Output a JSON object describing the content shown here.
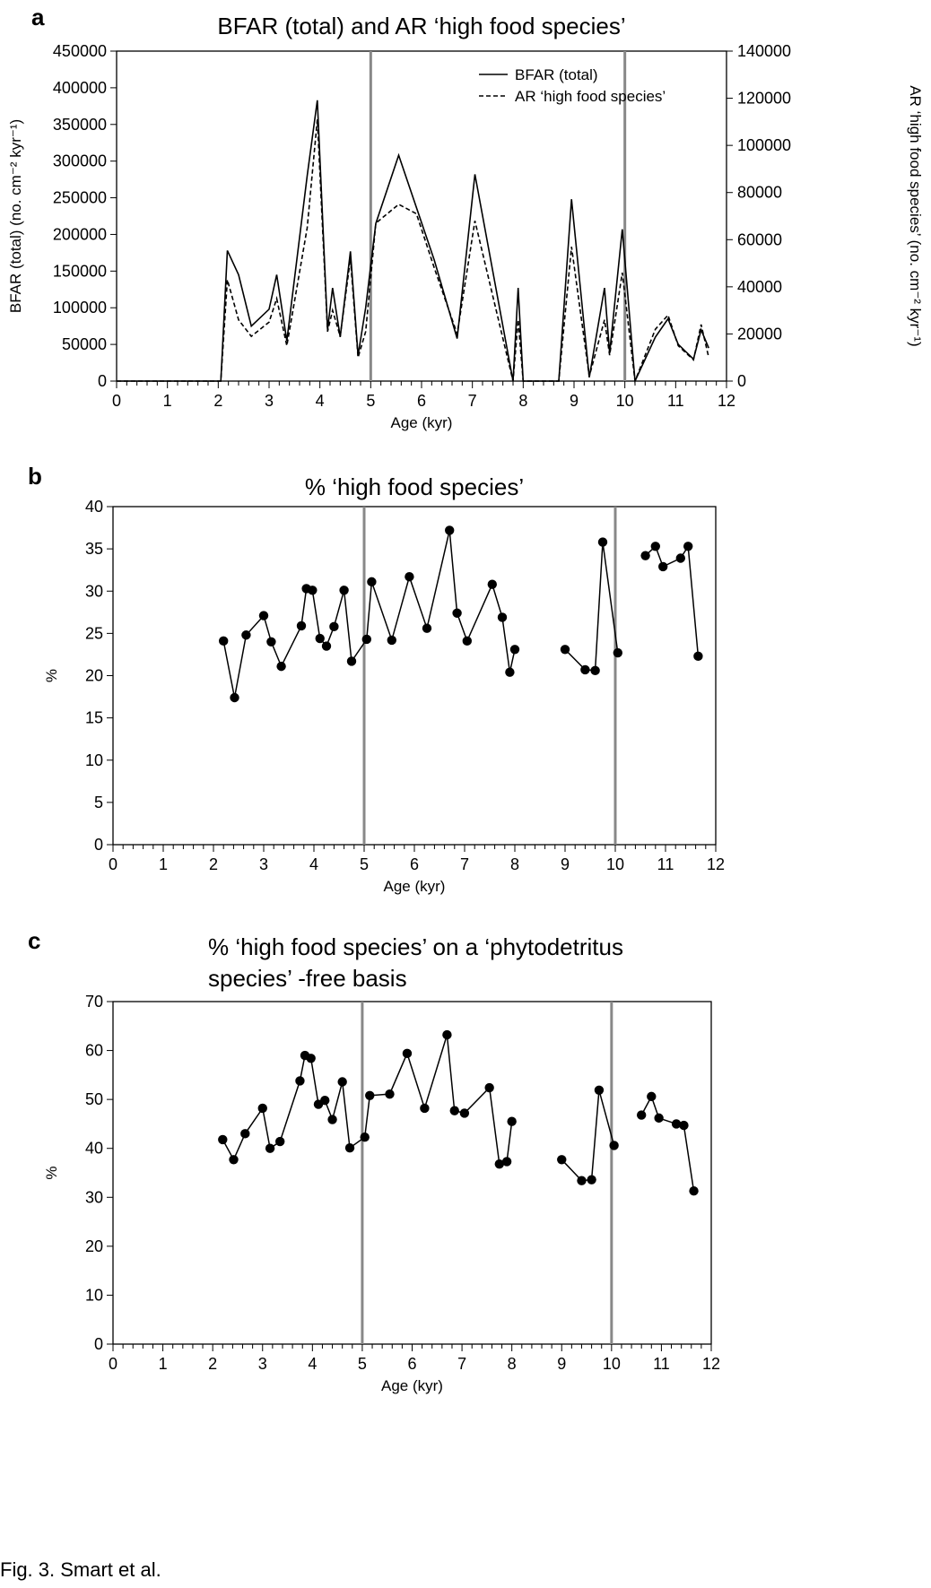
{
  "figure_caption": "Fig. 3. Smart et al.",
  "chart_data": [
    {
      "panel": "a",
      "type": "line",
      "title": "BFAR (total) and AR ‘high food species’",
      "xlabel": "Age (kyr)",
      "ylabel": "BFAR (total) (no. cm⁻² kyr⁻¹)",
      "y2label": "AR ‘high food species’ (no. cm⁻² kyr⁻¹)",
      "xlim": [
        0,
        12
      ],
      "ylim": [
        0,
        450000
      ],
      "y2lim": [
        0,
        140000
      ],
      "x_ticks": [
        "0",
        "1",
        "2",
        "3",
        "4",
        "5",
        "6",
        "7",
        "8",
        "9",
        "10",
        "11",
        "12"
      ],
      "y_ticks": [
        "0",
        "50000",
        "100000",
        "150000",
        "200000",
        "250000",
        "300000",
        "350000",
        "400000",
        "450000"
      ],
      "y2_ticks": [
        "0",
        "20000",
        "40000",
        "60000",
        "80000",
        "100000",
        "120000",
        "140000"
      ],
      "vlines": [
        5,
        10
      ],
      "legend_position": "top-right",
      "series": [
        {
          "name": "BFAR (total)",
          "style": "solid",
          "axis": "left",
          "x": [
            0,
            2.05,
            2.18,
            2.4,
            2.65,
            3.0,
            3.15,
            3.35,
            3.75,
            3.95,
            4.15,
            4.25,
            4.4,
            4.6,
            4.75,
            4.9,
            5.1,
            5.55,
            6.25,
            6.7,
            7.05,
            7.8,
            7.9,
            8.0,
            8.7,
            8.95,
            9.3,
            9.6,
            9.7,
            9.95,
            10.2,
            10.6,
            10.85,
            11.05,
            11.35,
            11.5,
            11.65
          ],
          "values": [
            0,
            0,
            178000,
            145000,
            75000,
            98000,
            145000,
            55000,
            280000,
            383000,
            70000,
            127000,
            60000,
            177000,
            35000,
            100000,
            215000,
            308000,
            165000,
            58000,
            282000,
            0,
            127000,
            0,
            0,
            248000,
            5000,
            127000,
            38000,
            207000,
            0,
            60000,
            85000,
            50000,
            30000,
            70000,
            45000
          ]
        },
        {
          "name": "AR ‘high food species’",
          "style": "dashed",
          "axis": "right",
          "x": [
            0,
            2.05,
            2.18,
            2.4,
            2.65,
            3.0,
            3.15,
            3.35,
            3.75,
            3.95,
            4.15,
            4.25,
            4.4,
            4.6,
            4.75,
            4.9,
            5.1,
            5.55,
            5.9,
            6.25,
            6.7,
            7.05,
            7.8,
            7.9,
            8.0,
            8.7,
            8.95,
            9.3,
            9.6,
            9.7,
            9.95,
            10.2,
            10.6,
            10.85,
            11.05,
            11.35,
            11.5,
            11.65
          ],
          "values": [
            0,
            0,
            43000,
            26000,
            19000,
            25000,
            35000,
            15000,
            65000,
            111000,
            21000,
            30000,
            19000,
            52000,
            10000,
            21000,
            67000,
            75000,
            71000,
            48000,
            20000,
            68000,
            0,
            26000,
            0,
            0,
            57000,
            2000,
            26000,
            11000,
            46000,
            0,
            22000,
            28000,
            15000,
            9000,
            24000,
            10000
          ]
        }
      ]
    },
    {
      "panel": "b",
      "type": "scatter",
      "title": "% ‘high food species’",
      "xlabel": "Age (kyr)",
      "ylabel": "%",
      "xlim": [
        0,
        12
      ],
      "ylim": [
        0,
        40
      ],
      "x_ticks": [
        "0",
        "1",
        "2",
        "3",
        "4",
        "5",
        "6",
        "7",
        "8",
        "9",
        "10",
        "11",
        "12"
      ],
      "y_ticks": [
        "0",
        "5",
        "10",
        "15",
        "20",
        "25",
        "30",
        "35",
        "40"
      ],
      "vlines": [
        5,
        10
      ],
      "segments": [
        {
          "x": [
            2.2,
            2.42,
            2.65,
            3.0,
            3.15,
            3.35,
            3.75,
            3.85,
            3.97,
            4.12,
            4.25,
            4.4,
            4.6,
            4.75,
            5.05,
            5.15,
            5.55,
            5.9,
            6.25,
            6.7,
            6.85,
            7.05,
            7.55,
            7.75,
            7.9,
            8.0
          ],
          "values": [
            24.1,
            17.4,
            24.8,
            27.1,
            24.0,
            21.1,
            25.9,
            30.3,
            30.1,
            24.4,
            23.5,
            25.8,
            30.1,
            21.7,
            24.3,
            31.1,
            24.2,
            31.7,
            25.6,
            37.2,
            27.4,
            24.1,
            30.8,
            26.9,
            20.4,
            23.1
          ]
        },
        {
          "x": [
            9.0,
            9.4,
            9.6,
            9.75,
            10.05
          ],
          "values": [
            23.1,
            20.7,
            20.6,
            35.8,
            22.7
          ]
        },
        {
          "x": [
            10.6,
            10.8,
            10.95,
            11.3,
            11.45,
            11.65
          ],
          "values": [
            34.2,
            35.3,
            32.9,
            33.9,
            35.3,
            22.3
          ]
        }
      ]
    },
    {
      "panel": "c",
      "type": "scatter",
      "title": "% ‘high food species’ on a ‘phytodetritus species’ -free basis",
      "title_lines": [
        "% ‘high food species’ on a ‘phytodetritus",
        "species’ -free basis"
      ],
      "xlabel": "Age (kyr)",
      "ylabel": "%",
      "xlim": [
        0,
        12
      ],
      "ylim": [
        0,
        70
      ],
      "x_ticks": [
        "0",
        "1",
        "2",
        "3",
        "4",
        "5",
        "6",
        "7",
        "8",
        "9",
        "10",
        "11",
        "12"
      ],
      "y_ticks": [
        "0",
        "10",
        "20",
        "30",
        "40",
        "50",
        "60",
        "70"
      ],
      "vlines": [
        5,
        10
      ],
      "segments": [
        {
          "x": [
            2.2,
            2.42,
            2.65,
            3.0,
            3.15,
            3.35,
            3.75,
            3.85,
            3.97,
            4.12,
            4.25,
            4.4,
            4.6,
            4.75,
            5.05,
            5.15,
            5.55,
            5.9,
            6.25,
            6.7,
            6.85,
            7.05,
            7.55,
            7.75,
            7.9,
            8.0
          ],
          "values": [
            41.8,
            37.7,
            43.0,
            48.2,
            40.0,
            41.4,
            53.8,
            59.0,
            58.4,
            49.0,
            49.8,
            45.9,
            53.6,
            40.1,
            42.3,
            50.8,
            51.1,
            59.4,
            48.2,
            63.2,
            47.7,
            47.2,
            52.4,
            36.8,
            37.3,
            45.5
          ]
        },
        {
          "x": [
            9.0,
            9.4,
            9.6,
            9.75,
            10.05
          ],
          "values": [
            37.7,
            33.4,
            33.6,
            51.9,
            40.6
          ]
        },
        {
          "x": [
            10.6,
            10.8,
            10.95,
            11.3,
            11.45,
            11.65
          ],
          "values": [
            46.8,
            50.6,
            46.2,
            45.0,
            44.7,
            31.3
          ]
        }
      ]
    }
  ]
}
